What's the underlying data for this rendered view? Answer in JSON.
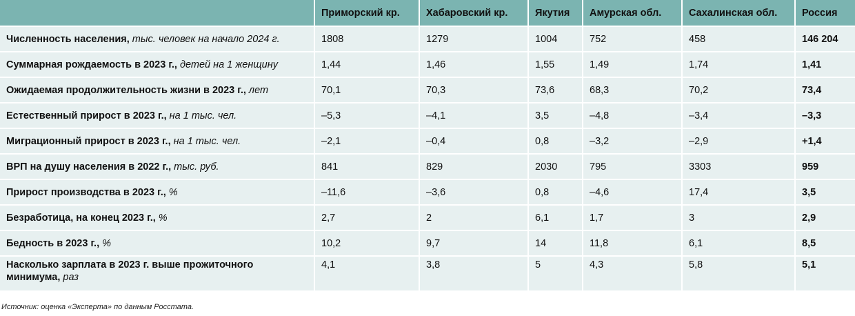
{
  "chart_data": {
    "type": "table",
    "columns": [
      "",
      "Приморский кр.",
      "Хабаровский кр.",
      "Якутия",
      "Амурская обл.",
      "Сахалинская обл.",
      "Россия"
    ],
    "rows": [
      {
        "label": "Численность населения,",
        "unit": "тыс. человек на начало 2024 г.",
        "values": [
          "1808",
          "1279",
          "1004",
          "752",
          "458",
          "146 204"
        ]
      },
      {
        "label": "Суммарная рождаемость в 2023 г.,",
        "unit": "детей на 1 женщину",
        "values": [
          "1,44",
          "1,46",
          "1,55",
          "1,49",
          "1,74",
          "1,41"
        ]
      },
      {
        "label": "Ожидаемая продолжительность жизни в 2023 г.,",
        "unit": "лет",
        "values": [
          "70,1",
          "70,3",
          "73,6",
          "68,3",
          "70,2",
          "73,4"
        ]
      },
      {
        "label": "Естественный прирост в 2023 г.,",
        "unit": "на 1 тыс. чел.",
        "values": [
          "–5,3",
          "–4,1",
          "3,5",
          "–4,8",
          "–3,4",
          "–3,3"
        ]
      },
      {
        "label": "Миграционный прирост в 2023 г.,",
        "unit": "на 1 тыс. чел.",
        "values": [
          "–2,1",
          "–0,4",
          "0,8",
          "–3,2",
          "–2,9",
          "+1,4"
        ]
      },
      {
        "label": "ВРП на душу населения в 2022 г.,",
        "unit": "тыс. руб.",
        "values": [
          "841",
          "829",
          "2030",
          "795",
          "3303",
          "959"
        ]
      },
      {
        "label": "Прирост производства в 2023 г.,",
        "unit": "%",
        "values": [
          "–11,6",
          "–3,6",
          "0,8",
          "–4,6",
          "17,4",
          "3,5"
        ]
      },
      {
        "label": "Безработица, на конец 2023 г.,",
        "unit": "%",
        "values": [
          "2,7",
          "2",
          "6,1",
          "1,7",
          "3",
          "2,9"
        ]
      },
      {
        "label": "Бедность в 2023 г.,",
        "unit": "%",
        "values": [
          "10,2",
          "9,7",
          "14",
          "11,8",
          "6,1",
          "8,5"
        ]
      },
      {
        "label": "Насколько зарплата в 2023 г. выше прожиточного минимума,",
        "unit": "раз",
        "values": [
          "4,1",
          "3,8",
          "5",
          "4,3",
          "5,8",
          "5,1"
        ]
      }
    ],
    "source": "Источник: оценка «Эксперта» по данным Росстата."
  },
  "colors": {
    "header_bg": "#7bb4b1",
    "cell_bg": "#e7f0f0"
  }
}
